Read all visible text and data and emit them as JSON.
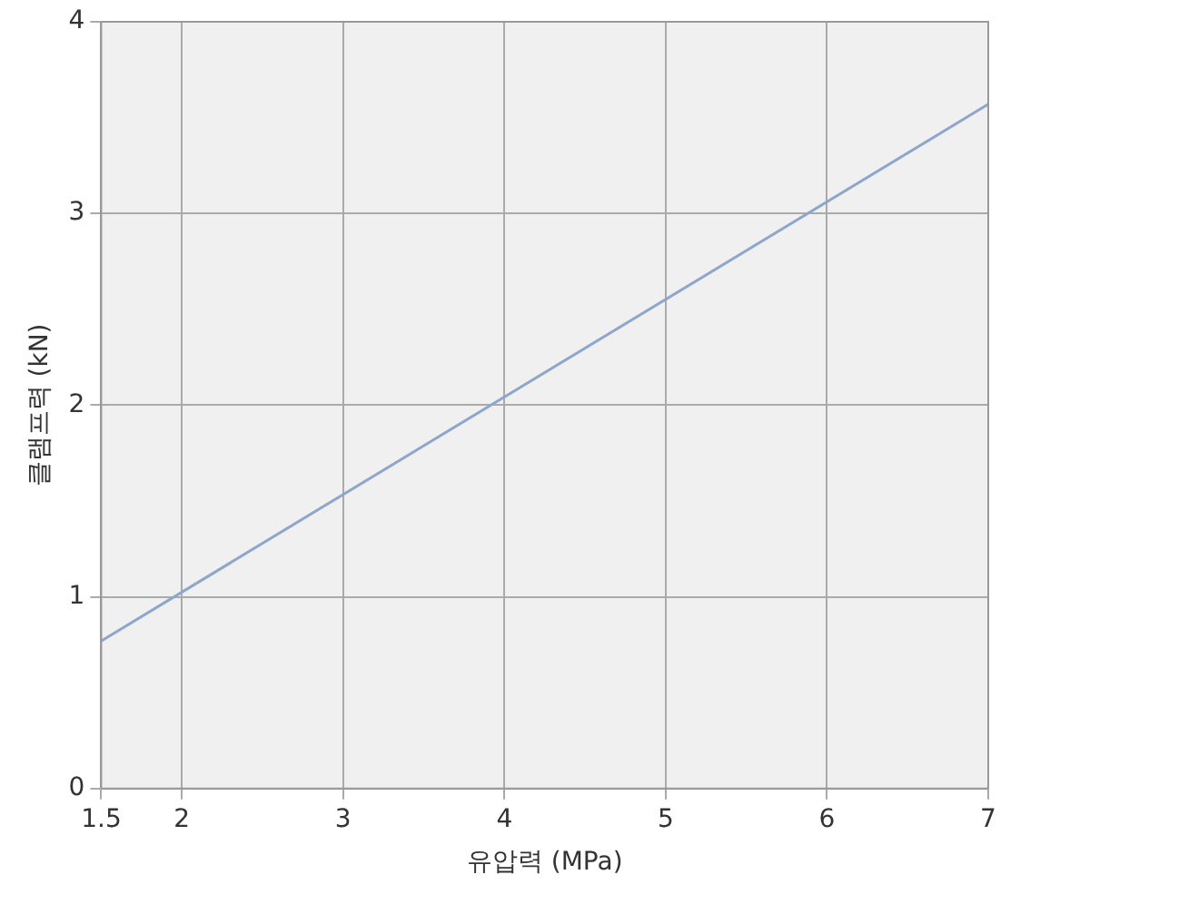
{
  "chart_data": {
    "type": "line",
    "xlabel": "유압력 (MPa)",
    "ylabel": "클램프력 (kN)",
    "x": [
      1.5,
      7
    ],
    "series": [
      {
        "color": "#8ea6cc",
        "values": [
          0.77,
          3.57
        ]
      }
    ],
    "xlim": [
      1.5,
      7
    ],
    "xticks": [
      1.5,
      2,
      3,
      4,
      5,
      6,
      7
    ],
    "ylim": [
      0,
      4
    ],
    "yticks": [
      0,
      1,
      2,
      3,
      4
    ],
    "grid": true,
    "legend": false,
    "marker": "none",
    "line_style": "solid"
  }
}
